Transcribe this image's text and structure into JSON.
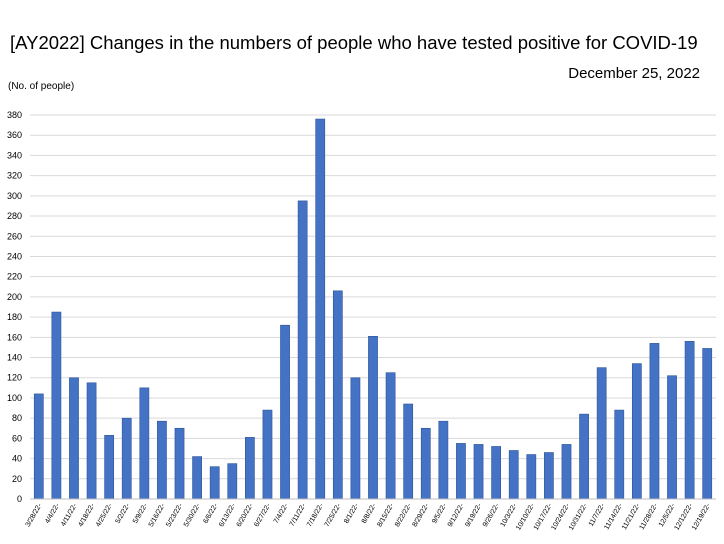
{
  "title": "[AY2022] Changes in the numbers of people who have tested positive for COVID-19",
  "date": "December 25, 2022",
  "chart_data": {
    "type": "bar",
    "title": "[AY2022] Changes in the numbers of people who have tested positive for COVID-19",
    "ylabel": "(No. of people)",
    "xlabel": "",
    "ylim": [
      0,
      380
    ],
    "yticks": [
      0,
      20,
      40,
      60,
      80,
      100,
      120,
      140,
      160,
      180,
      200,
      220,
      240,
      260,
      280,
      300,
      320,
      340,
      360,
      380
    ],
    "grid": true,
    "legend": "none",
    "bar_color": "#4472c4",
    "categories": [
      "3/28/22-",
      "4/4/22-",
      "4/11/22-",
      "4/18/22-",
      "4/25/22-",
      "5/2/22-",
      "5/9/22-",
      "5/16/22-",
      "5/23/22-",
      "5/30/22-",
      "6/6/22-",
      "6/13/22-",
      "6/20/22-",
      "6/27/22-",
      "7/4/22-",
      "7/11/22-",
      "7/18/22-",
      "7/25/22-",
      "8/1/22-",
      "8/8/22-",
      "8/15/22-",
      "8/22/22-",
      "8/29/22-",
      "9/5/22-",
      "9/12/22-",
      "9/19/22-",
      "9/26/22-",
      "10/3/22-",
      "10/10/22-",
      "10/17/22-",
      "10/24/22-",
      "10/31/22-",
      "11/7/22-",
      "11/14/22-",
      "11/21/22-",
      "11/28/22-",
      "12/5/22-",
      "12/12/22-",
      "12/19/22-"
    ],
    "values": [
      104,
      185,
      120,
      115,
      63,
      80,
      110,
      77,
      70,
      42,
      32,
      35,
      61,
      88,
      172,
      295,
      376,
      206,
      120,
      161,
      125,
      94,
      70,
      77,
      55,
      54,
      52,
      48,
      44,
      46,
      54,
      84,
      130,
      88,
      134,
      154,
      122,
      156,
      149
    ]
  }
}
